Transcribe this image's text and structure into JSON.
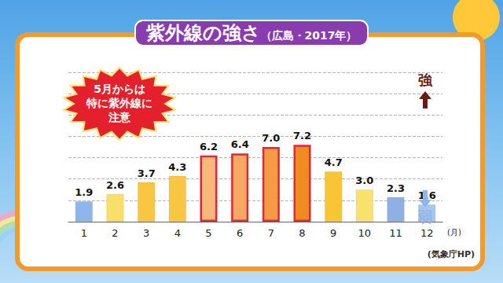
{
  "chart_data": {
    "type": "bar",
    "title": "紫外線の強さ",
    "subtitle": "（広島・2017年）",
    "categories": [
      "1",
      "2",
      "3",
      "4",
      "5",
      "6",
      "7",
      "8",
      "9",
      "10",
      "11",
      "12"
    ],
    "values": [
      1.9,
      2.6,
      3.7,
      4.3,
      6.2,
      6.4,
      7.0,
      7.2,
      4.7,
      3.0,
      2.3,
      1.6
    ],
    "value_labels": [
      "1.9",
      "2.6",
      "3.7",
      "4.3",
      "6.2",
      "6.4",
      "7.0",
      "7.2",
      "4.7",
      "3.0",
      "2.3",
      "1.6"
    ],
    "colors": [
      "#8fb6ea",
      "#f7df6a",
      "#f8c640",
      "#f8c640",
      "#f9b77a",
      "#f8a862",
      "#f59a45",
      "#f28a22",
      "#f8c535",
      "#f7e36c",
      "#8fb0e2",
      "#a9c5ee"
    ],
    "x_label": "(月)",
    "ylim": [
      0,
      14
    ],
    "yticks": [
      0,
      2,
      4,
      6,
      8,
      10,
      12,
      14
    ],
    "grid": true,
    "data_labels": true,
    "tick_labels": "x",
    "annotations": {
      "callout": "5月からは\n特に紫外線に\n注意",
      "strong": "強",
      "weak": "弱",
      "source": "(気象庁HP)"
    }
  }
}
